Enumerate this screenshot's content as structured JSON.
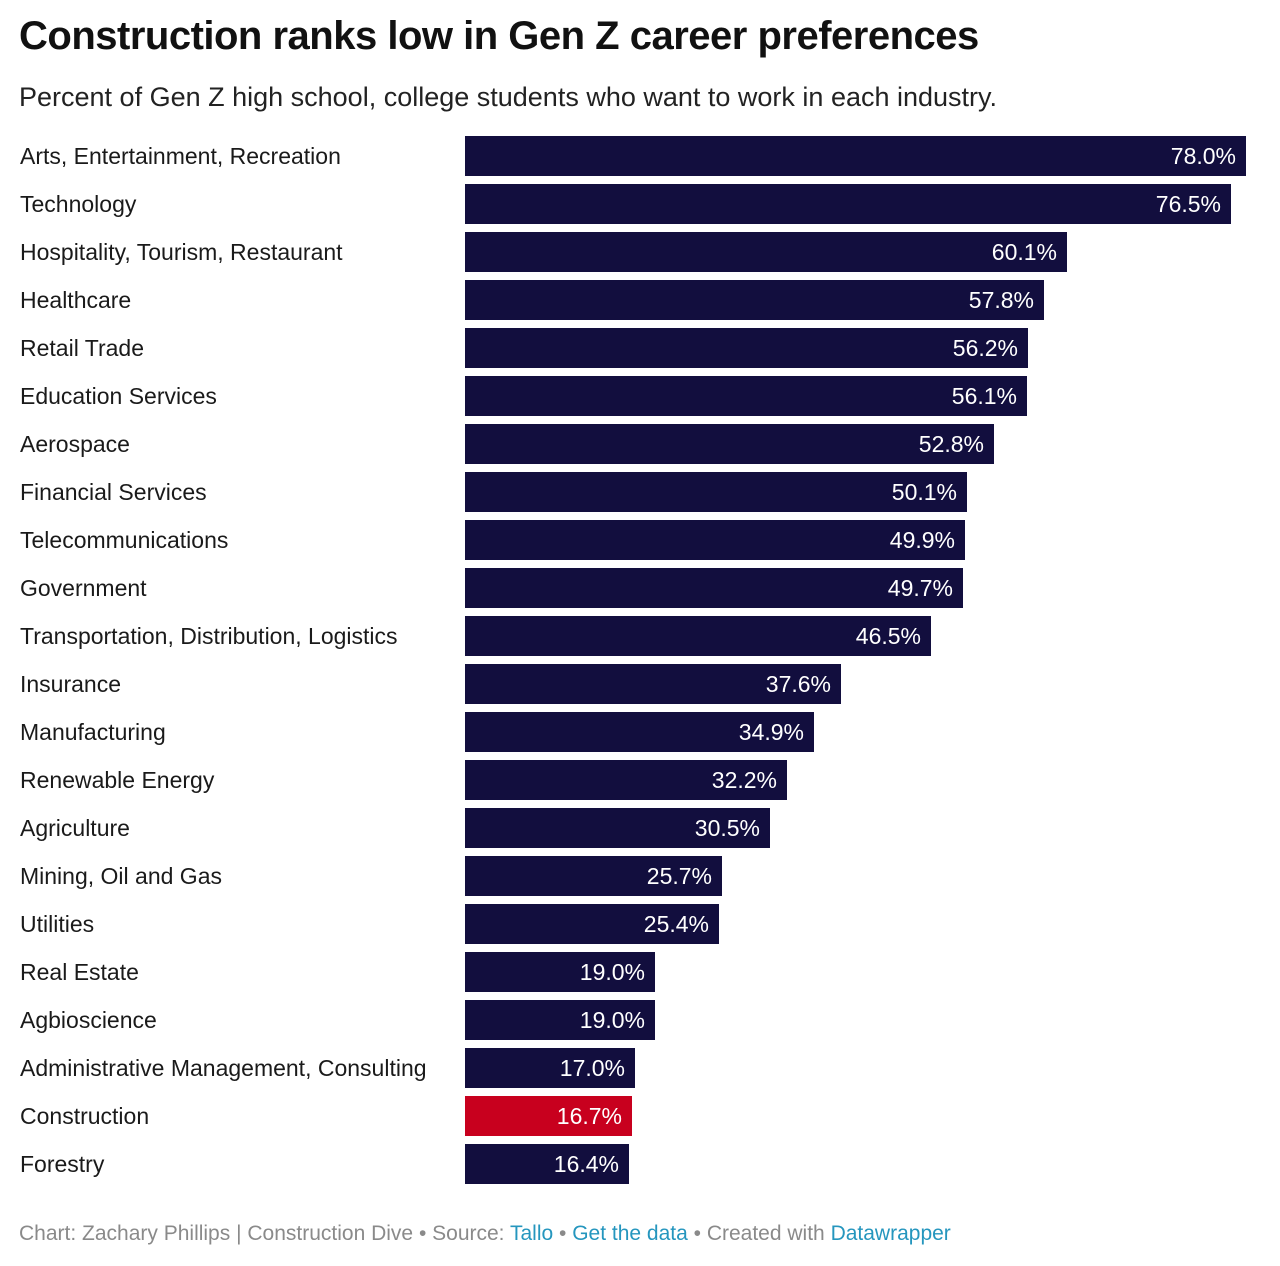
{
  "title": "Construction ranks low in Gen Z career preferences",
  "subtitle": "Percent of Gen Z high school, college students who want to work in each industry.",
  "colors": {
    "bar": "#120e3e",
    "highlight": "#c8001e",
    "link": "#2596be"
  },
  "chart_data": {
    "type": "bar",
    "orientation": "horizontal",
    "title": "Construction ranks low in Gen Z career preferences",
    "subtitle": "Percent of Gen Z high school, college students who want to work in each industry.",
    "xlim": [
      0,
      78.0
    ],
    "grid": false,
    "legend": "none",
    "highlight_category": "Construction",
    "categories": [
      "Arts, Entertainment, Recreation",
      "Technology",
      "Hospitality, Tourism, Restaurant",
      "Healthcare",
      "Retail Trade",
      "Education Services",
      "Aerospace",
      "Financial Services",
      "Telecommunications",
      "Government",
      "Transportation, Distribution, Logistics",
      "Insurance",
      "Manufacturing",
      "Renewable Energy",
      "Agriculture",
      "Mining, Oil and Gas",
      "Utilities",
      "Real Estate",
      "Agbioscience",
      "Administrative Management, Consulting",
      "Construction",
      "Forestry"
    ],
    "values": [
      78.0,
      76.5,
      60.1,
      57.8,
      56.2,
      56.1,
      52.8,
      50.1,
      49.9,
      49.7,
      46.5,
      37.6,
      34.9,
      32.2,
      30.5,
      25.7,
      25.4,
      19.0,
      19.0,
      17.0,
      16.7,
      16.4
    ],
    "value_labels": [
      "78.0%",
      "76.5%",
      "60.1%",
      "57.8%",
      "56.2%",
      "56.1%",
      "52.8%",
      "50.1%",
      "49.9%",
      "49.7%",
      "46.5%",
      "37.6%",
      "34.9%",
      "32.2%",
      "30.5%",
      "25.7%",
      "25.4%",
      "19.0%",
      "19.0%",
      "17.0%",
      "16.7%",
      "16.4%"
    ]
  },
  "footer": {
    "credit": "Chart: Zachary Phillips | Construction Dive",
    "sep1": " • ",
    "source_label": "Source: ",
    "source_link": "Tallo",
    "sep2": " • ",
    "data_link": "Get the data",
    "sep3": " • ",
    "created_label": "Created with ",
    "tool_link": "Datawrapper"
  }
}
